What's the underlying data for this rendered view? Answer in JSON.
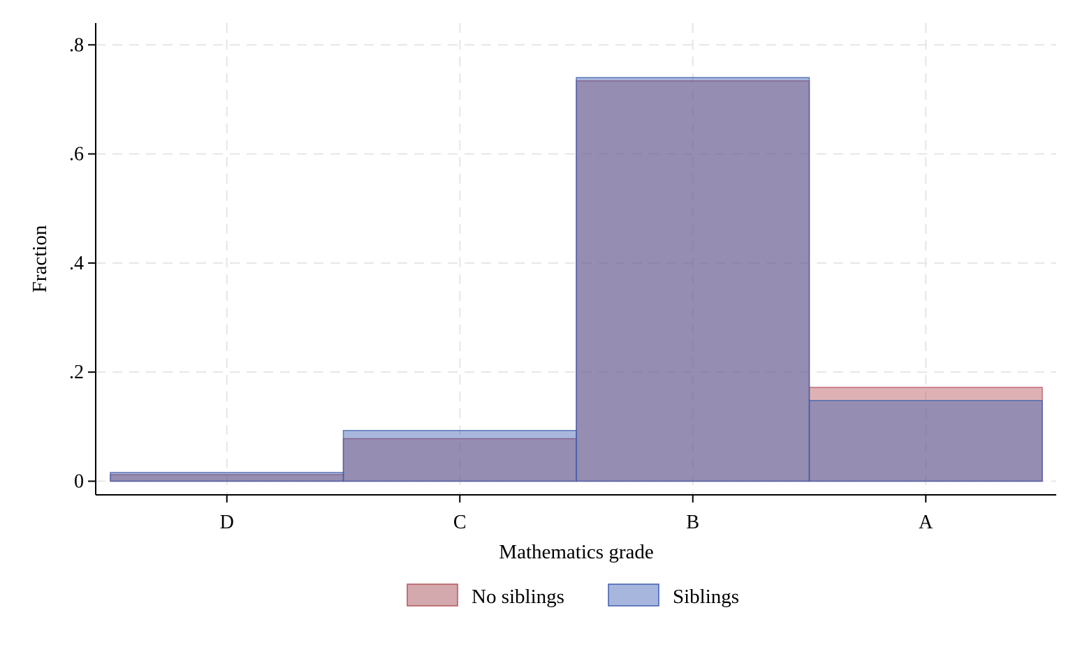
{
  "chart_data": {
    "type": "bar",
    "title": "",
    "xlabel": "Mathematics grade",
    "ylabel": "Fraction",
    "categories": [
      "D",
      "C",
      "B",
      "A"
    ],
    "y_ticks": [
      {
        "value": 0,
        "label": "0"
      },
      {
        "value": 0.2,
        "label": ".2"
      },
      {
        "value": 0.4,
        "label": ".4"
      },
      {
        "value": 0.6,
        "label": ".6"
      },
      {
        "value": 0.8,
        "label": ".8"
      }
    ],
    "ylim": [
      -0.025,
      0.84
    ],
    "grid": true,
    "legend_position": "bottom",
    "series": [
      {
        "name": "No siblings",
        "values": [
          0.012,
          0.078,
          0.734,
          0.172
        ],
        "color": "#b5545c"
      },
      {
        "name": "Siblings",
        "values": [
          0.016,
          0.093,
          0.74,
          0.148
        ],
        "color": "#3f5fb0"
      }
    ],
    "overlap_color": "#8f89ac"
  }
}
